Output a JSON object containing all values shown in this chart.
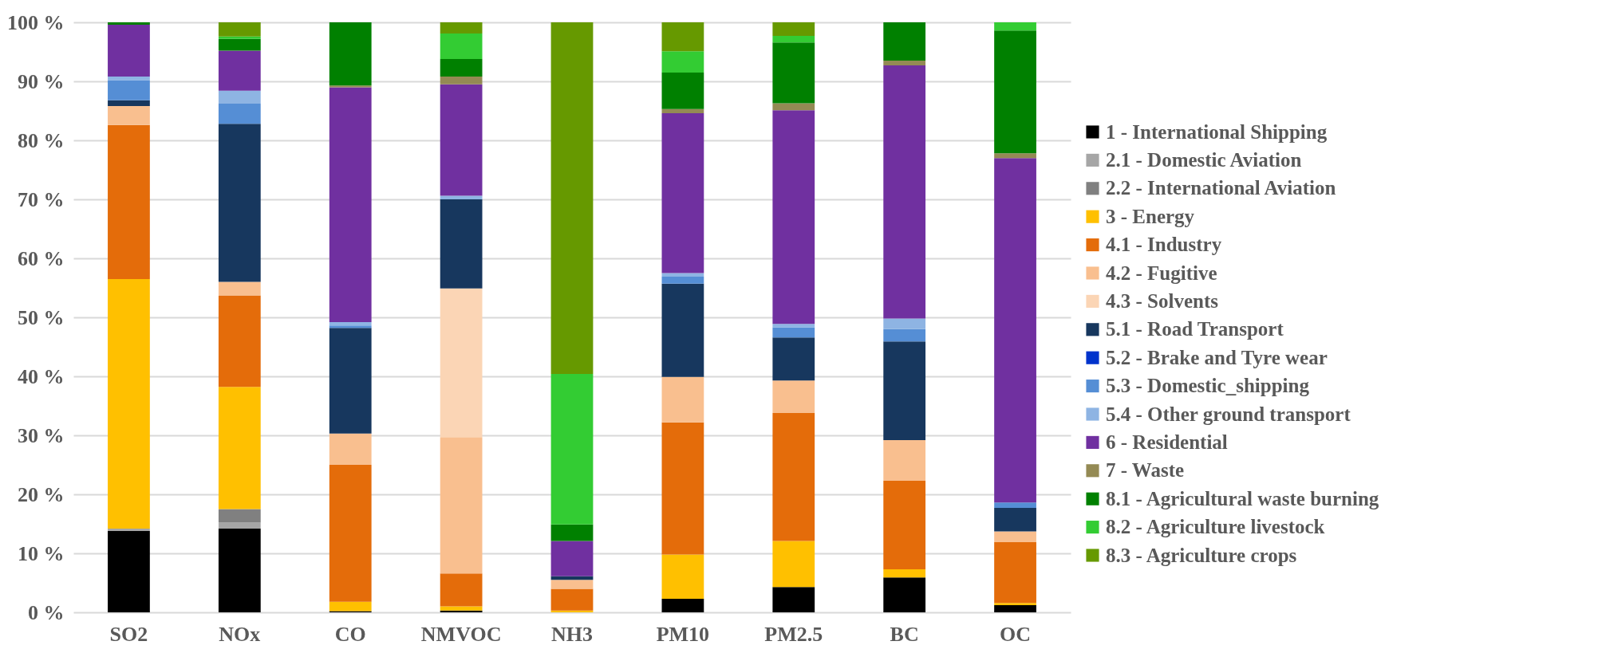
{
  "chart_data": {
    "type": "bar",
    "stacked": true,
    "categories": [
      "SO2",
      "NOx",
      "CO",
      "NMVOC",
      "NH3",
      "PM10",
      "PM2.5",
      "BC",
      "OC"
    ],
    "ylim": [
      0,
      100
    ],
    "yticks": [
      {
        "value": 0,
        "label": "0 %"
      },
      {
        "value": 10,
        "label": "10 %"
      },
      {
        "value": 20,
        "label": "20 %"
      },
      {
        "value": 30,
        "label": "30 %"
      },
      {
        "value": 40,
        "label": "40 %"
      },
      {
        "value": 50,
        "label": "50 %"
      },
      {
        "value": 60,
        "label": "60 %"
      },
      {
        "value": 70,
        "label": "70 %"
      },
      {
        "value": 80,
        "label": "80 %"
      },
      {
        "value": 90,
        "label": "90 %"
      },
      {
        "value": 100,
        "label": "100 %"
      }
    ],
    "grid": "y",
    "legend": "right",
    "series": [
      {
        "name": "1 - International Shipping",
        "color": "#000000",
        "values": [
          13.8,
          14.2,
          0.2,
          0.3,
          0,
          2.3,
          4.3,
          5.9,
          1.2
        ]
      },
      {
        "name": "2.1 - Domestic Aviation",
        "color": "#a6a6a6",
        "values": [
          0.4,
          1.0,
          0,
          0,
          0,
          0,
          0,
          0,
          0
        ]
      },
      {
        "name": "2.2 - International Aviation",
        "color": "#808080",
        "values": [
          0,
          2.3,
          0,
          0,
          0,
          0,
          0,
          0,
          0
        ]
      },
      {
        "name": "3 - Energy",
        "color": "#ffc000",
        "values": [
          42.3,
          20.7,
          1.6,
          0.7,
          0.3,
          7.5,
          7.8,
          1.4,
          0.4
        ]
      },
      {
        "name": "4.1 - Industry",
        "color": "#e46c0a",
        "values": [
          26.1,
          15.5,
          23.2,
          5.6,
          3.7,
          22.4,
          21.7,
          15.0,
          10.3
        ]
      },
      {
        "name": "4.2 - Fugitive",
        "color": "#f9bf8f",
        "values": [
          3.2,
          2.3,
          5.3,
          23.1,
          1.5,
          7.7,
          5.5,
          6.9,
          1.8
        ]
      },
      {
        "name": "4.3 - Solvents",
        "color": "#fbd5b5",
        "values": [
          0,
          0,
          0,
          25.2,
          0,
          0,
          0,
          0,
          0
        ]
      },
      {
        "name": "5.1 - Road Transport",
        "color": "#17375e",
        "values": [
          1.0,
          26.8,
          17.9,
          15.1,
          0.6,
          15.8,
          7.3,
          16.7,
          4.0
        ]
      },
      {
        "name": "5.2 - Brake and Tyre wear",
        "color": "#0033cc",
        "values": [
          0,
          0,
          0,
          0,
          0,
          0,
          0,
          0,
          0
        ]
      },
      {
        "name": "5.3 - Domestic_shipping",
        "color": "#558ed5",
        "values": [
          3.4,
          3.4,
          0.4,
          0,
          0,
          1.2,
          1.7,
          2.1,
          0.9
        ]
      },
      {
        "name": "5.4 - Other ground transport",
        "color": "#8eb4e3",
        "values": [
          0.6,
          2.2,
          0.6,
          0.6,
          0,
          0.6,
          0.6,
          1.8,
          0
        ]
      },
      {
        "name": "6 - Residential",
        "color": "#7030a0",
        "values": [
          8.8,
          6.8,
          39.8,
          18.9,
          6.0,
          27.1,
          36.2,
          42.9,
          58.4
        ]
      },
      {
        "name": "7 - Waste",
        "color": "#948a54",
        "values": [
          0,
          0,
          0.3,
          1.3,
          0,
          0.7,
          1.2,
          0.8,
          0.8
        ]
      },
      {
        "name": "8.1 - Agricultural waste burning",
        "color": "#008000",
        "values": [
          0.4,
          2.0,
          10.7,
          3.0,
          2.8,
          6.2,
          10.3,
          6.5,
          20.8
        ]
      },
      {
        "name": "8.2 - Agriculture livestock",
        "color": "#33cc33",
        "values": [
          0,
          0.4,
          0,
          4.3,
          25.5,
          3.6,
          1.1,
          0,
          1.4
        ]
      },
      {
        "name": "8.3 - Agriculture crops",
        "color": "#669900",
        "values": [
          0,
          2.4,
          0,
          1.9,
          59.6,
          4.9,
          2.3,
          0,
          0
        ]
      }
    ]
  }
}
